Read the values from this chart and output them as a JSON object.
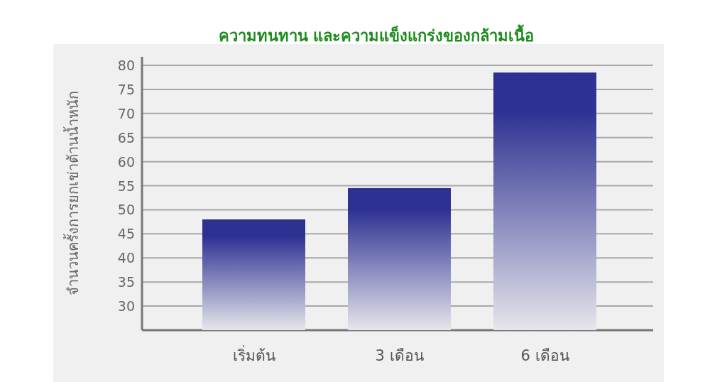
{
  "chart_data": {
    "type": "bar",
    "title": "ความทนทาน และความแข็งแกร่งของกล้ามเนื้อ",
    "ylabel": "จำนวนครั้งการยกเข่าต้านน้ำหนัก",
    "categories": [
      "เริ่มต้น",
      "3 เดือน",
      "6 เดือน"
    ],
    "values": [
      48,
      54.5,
      78.5
    ],
    "color": "#2e3192",
    "ylim": [
      25,
      80
    ],
    "yticks": [
      30,
      35,
      40,
      45,
      50,
      55,
      60,
      65,
      70,
      75,
      80
    ],
    "grid": "y"
  }
}
